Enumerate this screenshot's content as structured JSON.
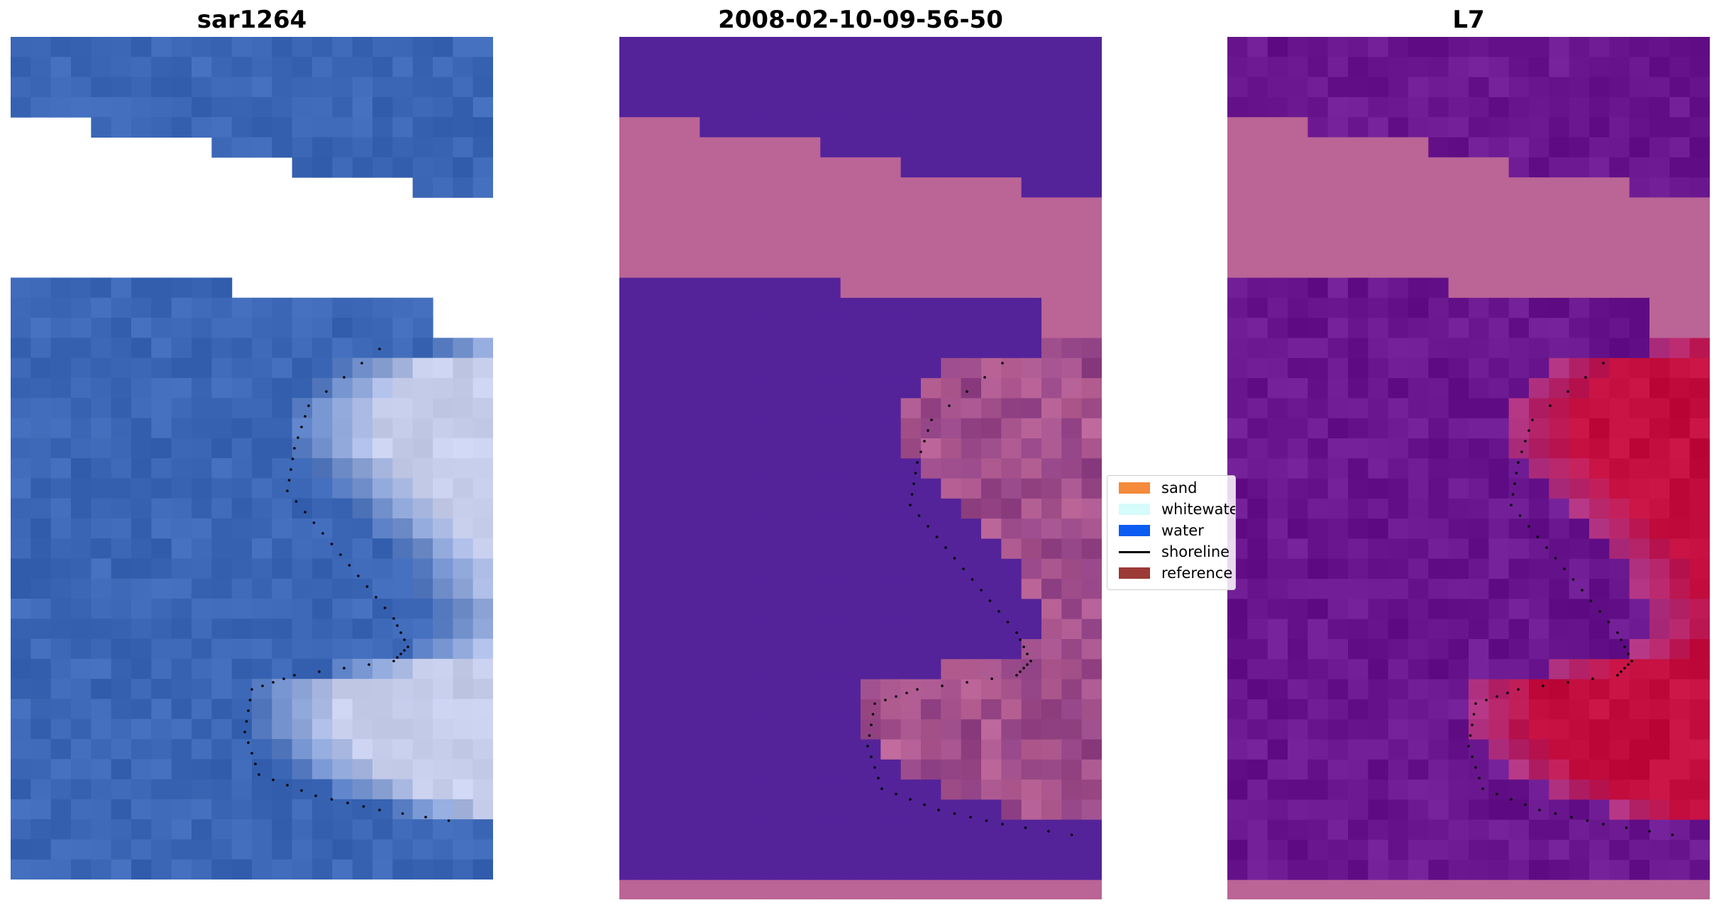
{
  "panels": [
    {
      "title": "sar1264",
      "style": "rgb"
    },
    {
      "title": "2008-02-10-09-56-50",
      "style": "classified"
    },
    {
      "title": "L7",
      "style": "index"
    }
  ],
  "legend": {
    "items": [
      {
        "label": "sand",
        "color": "#f58a3a",
        "kind": "patch"
      },
      {
        "label": "whitewater",
        "color": "#d5fbfb",
        "kind": "patch"
      },
      {
        "label": "water",
        "color": "#0b5cf0",
        "kind": "patch"
      },
      {
        "label": "shoreline",
        "color": "#000000",
        "kind": "line"
      },
      {
        "label": "reference",
        "color": "#9b3a36",
        "kind": "patch"
      }
    ]
  },
  "colors": {
    "water_class": "#54239a",
    "sand_class": "#bb6496",
    "rgb_water": "#3b67b6",
    "index_water": "#6a178f",
    "index_land": "#c20d3e"
  }
}
